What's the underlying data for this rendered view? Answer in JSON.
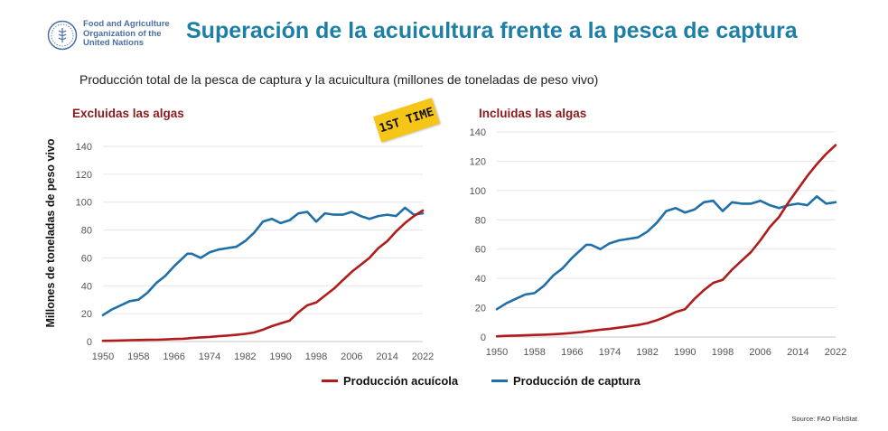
{
  "header": {
    "org_lines": [
      "Food and Agriculture",
      "Organization of the",
      "United Nations"
    ],
    "logo_text": "FAO",
    "title": "Superación de la acuicultura frente a la pesca de captura",
    "subtitle": "Producción total de la pesca de captura y la acuicultura (millones de toneladas de peso vivo)"
  },
  "badge": "1ST TIME",
  "y_axis_label": "Millones de toneladas de peso vivo",
  "legend": [
    {
      "label": "Producción acuícola",
      "color": "#b01c1c"
    },
    {
      "label": "Producción de captura",
      "color": "#1f6fa8"
    }
  ],
  "source": "Source: FAO FishStat",
  "colors": {
    "aquaculture": "#b01c1c",
    "capture": "#1f6fa8",
    "title": "#1d7fa6",
    "panel_title": "#8b1a1a",
    "badge": "#f5c518"
  },
  "chart_data": [
    {
      "type": "line",
      "title": "Excluidas las algas",
      "ylabel": "Millones de toneladas de peso vivo",
      "xlim": [
        1950,
        2022
      ],
      "ylim": [
        0,
        140
      ],
      "x_ticks": [
        1950,
        1958,
        1966,
        1974,
        1982,
        1990,
        1998,
        2006,
        2014,
        2022
      ],
      "y_ticks": [
        0,
        20,
        40,
        60,
        80,
        100,
        120,
        140
      ],
      "grid": "horizontal",
      "x": [
        1950,
        1952,
        1954,
        1956,
        1958,
        1960,
        1962,
        1964,
        1966,
        1968,
        1969,
        1970,
        1972,
        1974,
        1976,
        1978,
        1980,
        1982,
        1984,
        1986,
        1988,
        1990,
        1992,
        1994,
        1996,
        1998,
        2000,
        2002,
        2004,
        2006,
        2008,
        2010,
        2012,
        2014,
        2016,
        2018,
        2020,
        2022
      ],
      "series": [
        {
          "name": "Producción de captura",
          "values": [
            19,
            23,
            26,
            29,
            30,
            35,
            42,
            47,
            54,
            60,
            63,
            63,
            60,
            64,
            66,
            67,
            68,
            72,
            78,
            86,
            88,
            85,
            87,
            92,
            93,
            86,
            92,
            91,
            91,
            93,
            90,
            88,
            90,
            91,
            90,
            96,
            91,
            92
          ]
        },
        {
          "name": "Producción acuícola",
          "values": [
            0.5,
            0.6,
            0.8,
            1,
            1.1,
            1.2,
            1.3,
            1.5,
            1.8,
            2,
            2.2,
            2.5,
            3,
            3.3,
            3.8,
            4.3,
            4.8,
            5.5,
            6.5,
            8.5,
            11,
            13,
            15,
            21,
            26,
            28,
            33,
            38,
            44,
            50,
            55,
            60,
            67,
            72,
            79,
            85,
            90,
            94
          ]
        }
      ]
    },
    {
      "type": "line",
      "title": "Incluidas las algas",
      "xlim": [
        1950,
        2022
      ],
      "ylim": [
        0,
        140
      ],
      "x_ticks": [
        1950,
        1958,
        1966,
        1974,
        1982,
        1990,
        1998,
        2006,
        2014,
        2022
      ],
      "y_ticks": [
        0,
        20,
        40,
        60,
        80,
        100,
        120,
        140
      ],
      "grid": "horizontal",
      "x": [
        1950,
        1952,
        1954,
        1956,
        1958,
        1960,
        1962,
        1964,
        1966,
        1968,
        1969,
        1970,
        1972,
        1974,
        1976,
        1978,
        1980,
        1982,
        1984,
        1986,
        1988,
        1990,
        1992,
        1994,
        1996,
        1998,
        2000,
        2002,
        2004,
        2006,
        2008,
        2010,
        2012,
        2014,
        2016,
        2018,
        2020,
        2022
      ],
      "series": [
        {
          "name": "Producción de captura",
          "values": [
            19,
            23,
            26,
            29,
            30,
            35,
            42,
            47,
            54,
            60,
            63,
            63,
            60,
            64,
            66,
            67,
            68,
            72,
            78,
            86,
            88,
            85,
            87,
            92,
            93,
            86,
            92,
            91,
            91,
            93,
            90,
            88,
            90,
            91,
            90,
            96,
            91,
            92
          ]
        },
        {
          "name": "Producción acuícola",
          "values": [
            0.5,
            0.8,
            1,
            1.2,
            1.4,
            1.6,
            1.9,
            2.3,
            2.8,
            3.4,
            3.8,
            4.2,
            5,
            5.6,
            6.4,
            7.3,
            8.2,
            9.5,
            11.5,
            14,
            17,
            19,
            26,
            32,
            37,
            39,
            46,
            52,
            58,
            66,
            75,
            82,
            92,
            101,
            110,
            118,
            125,
            131
          ]
        }
      ]
    }
  ]
}
